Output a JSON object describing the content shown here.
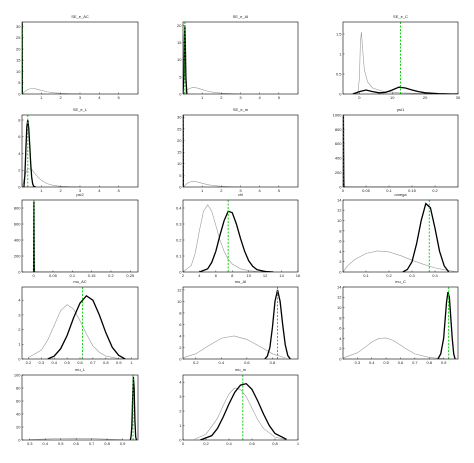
{
  "figure": {
    "background": "#ffffff"
  },
  "colors": {
    "prior": "#9a9a9a",
    "posterior": "#000000",
    "mode": "#00cc00",
    "frame": "#000000"
  },
  "chart_data": [
    {
      "type": "line",
      "title": "SE_e_AC",
      "xlim": [
        0,
        6
      ],
      "ylim": [
        0,
        32
      ],
      "xticks": [
        1,
        2,
        3,
        4,
        5
      ],
      "yticks": [
        0,
        5,
        10,
        15,
        20,
        25,
        30
      ],
      "series": [
        {
          "role": "prior",
          "x": [
            0.0,
            0.05,
            0.1,
            0.2,
            0.3,
            0.5,
            0.7,
            1.0,
            1.3,
            1.6,
            2.0,
            2.5,
            3.0
          ],
          "y": [
            0,
            0.3,
            0.7,
            1.4,
            2.0,
            2.5,
            2.3,
            1.6,
            1.0,
            0.6,
            0.3,
            0.1,
            0
          ]
        },
        {
          "role": "posterior",
          "x": [
            0.0,
            0.003,
            0.006,
            0.009,
            0.012,
            0.016,
            0.02
          ],
          "y": [
            0,
            10,
            30,
            32,
            20,
            5,
            0
          ]
        }
      ],
      "mode_x": 0.01
    },
    {
      "type": "line",
      "title": "SE_e_AI",
      "xlim": [
        0,
        6
      ],
      "ylim": [
        0,
        21
      ],
      "xticks": [
        1,
        2,
        3,
        4,
        5
      ],
      "yticks": [
        0,
        5,
        10,
        15,
        20
      ],
      "series": [
        {
          "role": "prior",
          "x": [
            0.0,
            0.05,
            0.1,
            0.2,
            0.3,
            0.5,
            0.7,
            1.0,
            1.3,
            1.6,
            2.0,
            2.5,
            3.0
          ],
          "y": [
            0,
            0.3,
            0.6,
            1.1,
            1.5,
            1.9,
            1.8,
            1.3,
            0.8,
            0.5,
            0.25,
            0.08,
            0
          ]
        },
        {
          "role": "posterior",
          "x": [
            0.0,
            0.05,
            0.08,
            0.1,
            0.12,
            0.15,
            0.2
          ],
          "y": [
            0,
            6,
            17,
            20,
            15,
            5,
            0
          ]
        }
      ],
      "mode_x": 0.1
    },
    {
      "type": "line",
      "title": "SE_e_C",
      "xlim": [
        -5,
        30
      ],
      "ylim": [
        0,
        1.8
      ],
      "xticks": [
        0,
        10,
        20,
        30
      ],
      "yticks": [
        0,
        0.5,
        1,
        1.5
      ],
      "series": [
        {
          "role": "prior",
          "x": [
            -0.5,
            0,
            0.3,
            0.6,
            1,
            1.5,
            2.5,
            4,
            7,
            12,
            18,
            24,
            30
          ],
          "y": [
            0,
            0.4,
            1.3,
            1.55,
            1.1,
            0.6,
            0.3,
            0.15,
            0.07,
            0.03,
            0.015,
            0.005,
            0
          ]
        },
        {
          "role": "posterior",
          "x": [
            -2,
            0,
            2,
            4,
            6,
            8,
            10,
            12,
            14,
            16,
            18,
            20,
            24,
            28,
            30
          ],
          "y": [
            0,
            0.06,
            0.1,
            0.06,
            0.03,
            0.04,
            0.1,
            0.17,
            0.15,
            0.1,
            0.06,
            0.03,
            0.01,
            0,
            0
          ]
        }
      ],
      "mode_x": 12.5
    },
    {
      "type": "line",
      "title": "SE_e_L",
      "xlim": [
        0,
        6
      ],
      "ylim": [
        0,
        8.6
      ],
      "xticks": [
        1,
        2,
        3,
        4,
        5
      ],
      "yticks": [
        0,
        2,
        4,
        6,
        8
      ],
      "series": [
        {
          "role": "prior",
          "x": [
            0.0,
            0.05,
            0.1,
            0.2,
            0.3,
            0.5,
            0.7,
            1.0,
            1.3,
            1.6,
            2.0,
            2.5,
            3.0
          ],
          "y": [
            0,
            0.4,
            0.9,
            1.7,
            2.2,
            2.1,
            1.5,
            0.8,
            0.4,
            0.2,
            0.08,
            0.02,
            0
          ]
        },
        {
          "role": "posterior",
          "x": [
            0.1,
            0.15,
            0.2,
            0.25,
            0.3,
            0.35,
            0.4,
            0.45,
            0.5,
            0.55,
            0.6,
            0.7
          ],
          "y": [
            0,
            1.5,
            4.5,
            7.2,
            8.0,
            7.0,
            5.0,
            2.8,
            1.2,
            0.4,
            0.1,
            0
          ]
        }
      ],
      "mode_x": 0.3
    },
    {
      "type": "line",
      "title": "SE_e_m",
      "xlim": [
        0,
        6
      ],
      "ylim": [
        0,
        31
      ],
      "xticks": [
        1,
        2,
        3,
        4,
        5
      ],
      "yticks": [
        0,
        5,
        10,
        15,
        20,
        25,
        30
      ],
      "series": [
        {
          "role": "prior",
          "x": [
            0.0,
            0.05,
            0.1,
            0.2,
            0.3,
            0.5,
            0.7,
            1.0,
            1.3,
            1.6,
            2.0,
            2.5,
            3.0
          ],
          "y": [
            0,
            0.3,
            0.7,
            1.4,
            2.0,
            2.5,
            2.3,
            1.6,
            1.0,
            0.6,
            0.3,
            0.1,
            0
          ]
        },
        {
          "role": "posterior",
          "x": [
            0.0,
            0.003,
            0.006,
            0.009,
            0.012,
            0.016,
            0.02
          ],
          "y": [
            0,
            10,
            28,
            31,
            20,
            5,
            0
          ]
        }
      ],
      "mode_x": 0.01
    },
    {
      "type": "line",
      "title": "psi1",
      "xlim": [
        0,
        0.25
      ],
      "ylim": [
        0,
        1000
      ],
      "xticks": [
        0,
        0.05,
        0.1,
        0.15,
        0.2
      ],
      "yticks": [
        0,
        200,
        400,
        600,
        800,
        1000
      ],
      "series": [
        {
          "role": "prior",
          "x": [
            0.0,
            0.002,
            0.005,
            0.01,
            0.02,
            0.05,
            0.1,
            0.25
          ],
          "y": [
            0,
            8,
            6,
            4,
            2,
            1,
            0.5,
            0
          ]
        },
        {
          "role": "posterior",
          "x": [
            0.0,
            0.0003,
            0.0006,
            0.0009,
            0.0012,
            0.0016,
            0.002
          ],
          "y": [
            0,
            300,
            950,
            990,
            600,
            150,
            0
          ]
        }
      ],
      "mode_x": 0.0008
    },
    {
      "type": "line",
      "title": "psi2",
      "xlim": [
        -0.03,
        0.27
      ],
      "ylim": [
        0,
        900
      ],
      "xticks": [
        0,
        0.05,
        0.1,
        0.15,
        0.2,
        0.25
      ],
      "yticks": [
        0,
        200,
        400,
        600,
        800
      ],
      "series": [
        {
          "role": "prior",
          "x": [
            0.0,
            0.002,
            0.005,
            0.01,
            0.02,
            0.05,
            0.1,
            0.25
          ],
          "y": [
            0,
            8,
            6,
            4,
            2,
            1,
            0.5,
            0
          ]
        },
        {
          "role": "posterior",
          "x": [
            0.0,
            0.0003,
            0.0006,
            0.0009,
            0.0012,
            0.0016,
            0.002
          ],
          "y": [
            0,
            300,
            850,
            880,
            600,
            150,
            0
          ]
        }
      ],
      "mode_x": 0.0008
    },
    {
      "type": "line",
      "title": "chi",
      "xlim": [
        2,
        16
      ],
      "ylim": [
        0,
        0.45
      ],
      "xticks": [
        2,
        4,
        6,
        8,
        10,
        12,
        14,
        16
      ],
      "yticks": [
        0,
        0.1,
        0.2,
        0.3,
        0.4
      ],
      "series": [
        {
          "role": "prior",
          "x": [
            2,
            3,
            3.5,
            4,
            4.5,
            5,
            5.5,
            6,
            6.5,
            7,
            7.5,
            8,
            9,
            10,
            11,
            12
          ],
          "y": [
            0,
            0.04,
            0.12,
            0.26,
            0.38,
            0.42,
            0.38,
            0.29,
            0.2,
            0.13,
            0.08,
            0.05,
            0.02,
            0.008,
            0.003,
            0
          ]
        },
        {
          "role": "posterior",
          "x": [
            4,
            5,
            5.5,
            6,
            6.5,
            7,
            7.5,
            8,
            8.5,
            9,
            9.5,
            10,
            10.5,
            11,
            12,
            13
          ],
          "y": [
            0,
            0.02,
            0.06,
            0.13,
            0.23,
            0.32,
            0.38,
            0.37,
            0.3,
            0.21,
            0.13,
            0.07,
            0.035,
            0.015,
            0.003,
            0
          ]
        }
      ],
      "mode_x": 7.5
    },
    {
      "type": "line",
      "title": "omega",
      "xlim": [
        0,
        0.5
      ],
      "ylim": [
        0,
        14
      ],
      "xticks": [
        0.1,
        0.2,
        0.3,
        0.4
      ],
      "yticks": [
        0,
        2,
        4,
        6,
        8,
        10,
        12,
        14
      ],
      "series": [
        {
          "role": "prior",
          "x": [
            0,
            0.02,
            0.05,
            0.1,
            0.15,
            0.2,
            0.25,
            0.3,
            0.35,
            0.4,
            0.45,
            0.5
          ],
          "y": [
            0,
            1.2,
            2.4,
            3.6,
            4.1,
            3.9,
            3.2,
            2.3,
            1.5,
            0.8,
            0.35,
            0
          ]
        },
        {
          "role": "posterior",
          "x": [
            0.26,
            0.28,
            0.3,
            0.32,
            0.34,
            0.36,
            0.38,
            0.4,
            0.42,
            0.44,
            0.46
          ],
          "y": [
            0,
            0.5,
            2,
            5.5,
            10,
            13.3,
            12.5,
            8.5,
            4,
            1.2,
            0
          ]
        }
      ],
      "mode_x": 0.375
    },
    {
      "type": "line",
      "title": "mu_AC",
      "xlim": [
        0.15,
        1.05
      ],
      "ylim": [
        0,
        4.9
      ],
      "xticks": [
        0.2,
        0.3,
        0.4,
        0.5,
        0.6,
        0.7,
        0.8,
        0.9,
        1
      ],
      "yticks": [
        0,
        1,
        2,
        3,
        4
      ],
      "series": [
        {
          "role": "prior",
          "x": [
            0.2,
            0.3,
            0.35,
            0.4,
            0.45,
            0.5,
            0.55,
            0.6,
            0.65,
            0.7,
            0.75,
            0.8,
            0.9,
            1.0
          ],
          "y": [
            0.1,
            0.6,
            1.3,
            2.3,
            3.3,
            3.7,
            3.4,
            2.6,
            1.7,
            0.9,
            0.45,
            0.2,
            0.03,
            0
          ]
        },
        {
          "role": "posterior",
          "x": [
            0.35,
            0.4,
            0.45,
            0.5,
            0.55,
            0.6,
            0.65,
            0.7,
            0.75,
            0.8,
            0.85,
            0.9,
            0.95
          ],
          "y": [
            0,
            0.2,
            0.7,
            1.6,
            2.8,
            3.8,
            4.3,
            4.0,
            3.0,
            1.8,
            0.8,
            0.25,
            0
          ]
        }
      ],
      "mode_x": 0.62
    },
    {
      "type": "line",
      "title": "mu_AI",
      "xlim": [
        0.1,
        1.0
      ],
      "ylim": [
        0,
        12.5
      ],
      "xticks": [
        0.2,
        0.4,
        0.6,
        0.8
      ],
      "yticks": [
        0,
        2,
        4,
        6,
        8,
        10,
        12
      ],
      "series": [
        {
          "role": "prior",
          "x": [
            0.1,
            0.2,
            0.3,
            0.4,
            0.5,
            0.6,
            0.7,
            0.8,
            0.9
          ],
          "y": [
            0.2,
            0.9,
            2.3,
            3.6,
            4.0,
            3.4,
            2.2,
            0.9,
            0.2
          ]
        },
        {
          "role": "posterior",
          "x": [
            0.74,
            0.76,
            0.78,
            0.8,
            0.82,
            0.84,
            0.86,
            0.88,
            0.9,
            0.92,
            0.94
          ],
          "y": [
            0,
            0.5,
            2,
            5.5,
            10,
            12,
            10,
            6,
            2.5,
            0.6,
            0
          ]
        }
      ],
      "mode_x": 0.84
    },
    {
      "type": "line",
      "title": "mu_C",
      "xlim": [
        0.2,
        1.0
      ],
      "ylim": [
        0,
        14
      ],
      "xticks": [
        0.3,
        0.4,
        0.5,
        0.6,
        0.7,
        0.8,
        0.9
      ],
      "yticks": [
        0,
        2,
        4,
        6,
        8,
        10,
        12,
        14
      ],
      "series": [
        {
          "role": "prior",
          "x": [
            0.2,
            0.3,
            0.35,
            0.4,
            0.45,
            0.5,
            0.55,
            0.6,
            0.65,
            0.7,
            0.8,
            0.9
          ],
          "y": [
            0.2,
            1.2,
            2.2,
            3.3,
            4.0,
            4.1,
            3.6,
            2.7,
            1.8,
            1.0,
            0.3,
            0.05
          ]
        },
        {
          "role": "posterior",
          "x": [
            0.86,
            0.88,
            0.9,
            0.91,
            0.92,
            0.93,
            0.94,
            0.95,
            0.96,
            0.97,
            0.98
          ],
          "y": [
            0,
            1,
            4,
            7.5,
            11,
            13,
            12,
            8,
            4,
            1,
            0
          ]
        }
      ],
      "mode_x": 0.935
    },
    {
      "type": "line",
      "title": "mu_L",
      "xlim": [
        0.25,
        1.0
      ],
      "ylim": [
        0,
        100
      ],
      "xticks": [
        0.3,
        0.4,
        0.5,
        0.6,
        0.7,
        0.8,
        0.9
      ],
      "yticks": [
        0,
        20,
        40,
        60,
        80,
        100
      ],
      "series": [
        {
          "role": "prior",
          "x": [
            0.3,
            0.4,
            0.5,
            0.6,
            0.7,
            0.8,
            0.9
          ],
          "y": [
            0.5,
            1.5,
            2.5,
            2.8,
            2.2,
            1.2,
            0.4
          ]
        },
        {
          "role": "posterior",
          "x": [
            0.95,
            0.955,
            0.96,
            0.965,
            0.97,
            0.975,
            0.98,
            0.985,
            0.99
          ],
          "y": [
            0,
            5,
            20,
            60,
            97,
            80,
            30,
            5,
            0
          ]
        }
      ],
      "mode_x": 0.968
    },
    {
      "type": "line",
      "title": "mu_m",
      "xlim": [
        0,
        1
      ],
      "ylim": [
        0,
        4.5
      ],
      "xticks": [
        0,
        0.2,
        0.4,
        0.6,
        0.8,
        1
      ],
      "yticks": [
        0,
        1,
        2,
        3,
        4
      ],
      "series": [
        {
          "role": "prior",
          "x": [
            0.1,
            0.2,
            0.3,
            0.35,
            0.4,
            0.45,
            0.5,
            0.55,
            0.6,
            0.65,
            0.7,
            0.8,
            0.9
          ],
          "y": [
            0.05,
            0.4,
            1.5,
            2.4,
            3.2,
            3.6,
            3.5,
            3.0,
            2.2,
            1.4,
            0.8,
            0.2,
            0.02
          ]
        },
        {
          "role": "posterior",
          "x": [
            0.15,
            0.25,
            0.3,
            0.35,
            0.4,
            0.45,
            0.5,
            0.55,
            0.6,
            0.65,
            0.7,
            0.75,
            0.8,
            0.9
          ],
          "y": [
            0,
            0.3,
            0.8,
            1.6,
            2.5,
            3.3,
            3.8,
            3.9,
            3.5,
            2.7,
            1.8,
            1.0,
            0.45,
            0.05
          ]
        }
      ],
      "mode_x": 0.52
    }
  ]
}
